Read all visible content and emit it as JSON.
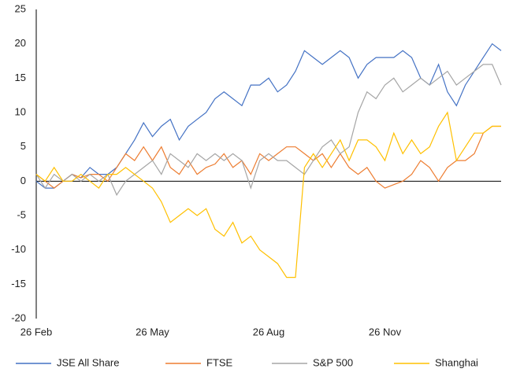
{
  "chart_data": {
    "type": "line",
    "categories": [
      "26 Feb",
      null,
      null,
      null,
      null,
      null,
      null,
      null,
      null,
      null,
      null,
      null,
      null,
      "26 May",
      null,
      null,
      null,
      null,
      null,
      null,
      null,
      null,
      null,
      null,
      null,
      null,
      "26 Aug",
      null,
      null,
      null,
      null,
      null,
      null,
      null,
      null,
      null,
      null,
      null,
      null,
      "26 Nov",
      null,
      null,
      null,
      null,
      null,
      null,
      null,
      null,
      null,
      null,
      null,
      null,
      null
    ],
    "series": [
      {
        "name": "JSE All Share",
        "color": "#4472c4",
        "values": [
          0,
          -1,
          -1,
          0,
          1,
          0.5,
          2,
          1,
          1,
          2,
          4,
          6,
          8.5,
          6.5,
          8,
          9,
          6,
          8,
          9,
          10,
          12,
          13,
          12,
          11,
          14,
          14,
          15,
          13,
          14,
          16,
          19,
          18,
          17,
          18,
          19,
          18,
          15,
          17,
          18,
          18,
          18,
          19,
          18,
          15,
          14,
          17,
          13,
          11,
          14,
          16,
          18,
          20,
          19
        ]
      },
      {
        "name": "FTSE",
        "color": "#ed7d31",
        "values": [
          1,
          0,
          -1,
          0,
          1,
          0.5,
          1,
          1,
          0,
          2,
          4,
          3,
          5,
          3,
          5,
          2,
          1,
          3,
          1,
          2,
          2.5,
          4,
          2,
          3,
          1,
          4,
          3,
          4,
          5,
          5,
          4,
          3,
          4,
          2,
          4,
          2,
          1,
          2,
          0,
          -1,
          -0.5,
          0,
          1,
          3,
          2,
          0,
          2,
          3,
          3,
          4,
          7,
          8,
          8
        ]
      },
      {
        "name": "S&P 500",
        "color": "#a5a5a5",
        "values": [
          1,
          -1,
          1,
          0,
          1,
          0,
          1,
          0,
          1,
          -2,
          0,
          1,
          2,
          3,
          1,
          4,
          3,
          2,
          4,
          3,
          4,
          3,
          4,
          3,
          -1,
          3,
          4,
          3,
          3,
          2,
          1,
          3,
          5,
          6,
          4,
          5,
          10,
          13,
          12,
          14,
          15,
          13,
          14,
          15,
          14,
          15,
          16,
          14,
          15,
          16,
          17,
          17,
          14
        ]
      },
      {
        "name": "Shanghai",
        "color": "#ffc000",
        "values": [
          1,
          0,
          2,
          0,
          0,
          1,
          0,
          -1,
          1,
          1,
          2,
          1,
          0,
          -1,
          -3,
          -6,
          -5,
          -4,
          -5,
          -4,
          -7,
          -8,
          -6,
          -9,
          -8,
          -10,
          -11,
          -12,
          -14,
          -14,
          2,
          4,
          2,
          4,
          6,
          3,
          6,
          6,
          5,
          3,
          7,
          4,
          6,
          4,
          5,
          8,
          10,
          3,
          5,
          7,
          7,
          8,
          8
        ]
      }
    ],
    "ylim": [
      -20,
      25
    ],
    "yticks": [
      -20,
      -15,
      -10,
      -5,
      0,
      5,
      10,
      15,
      20,
      25
    ],
    "grid": false,
    "legend": "bottom"
  }
}
